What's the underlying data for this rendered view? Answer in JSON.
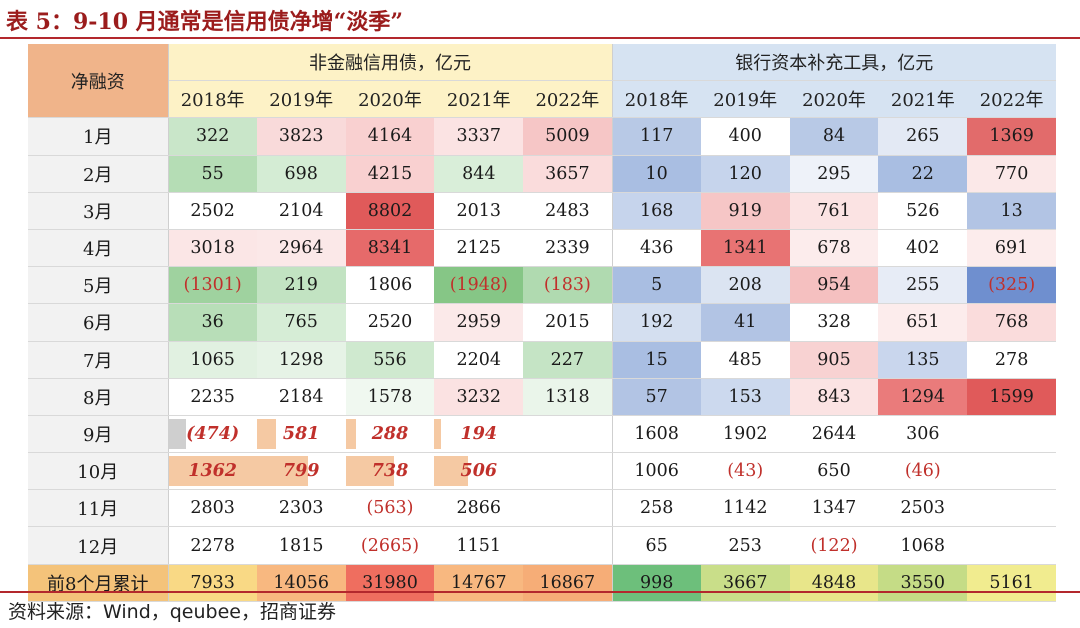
{
  "title": "表 5：9-10 月通常是信用债净增“淡季”",
  "row_header_label": "净融资",
  "groups": [
    "非金融信用债，亿元",
    "银行资本补充工具，亿元"
  ],
  "years": [
    "2018年",
    "2019年",
    "2020年",
    "2021年",
    "2022年",
    "2018年",
    "2019年",
    "2020年",
    "2021年",
    "2022年"
  ],
  "rows": [
    {
      "label": "1月",
      "cells": [
        {
          "v": "322",
          "bg": "#c9e6c9"
        },
        {
          "v": "3823",
          "bg": "#f9dada"
        },
        {
          "v": "4164",
          "bg": "#f9d0d0"
        },
        {
          "v": "3337",
          "bg": "#fbe3e3"
        },
        {
          "v": "5009",
          "bg": "#f6c6c6"
        },
        {
          "v": "117",
          "bg": "#b8c9e6"
        },
        {
          "v": "400",
          "bg": "#ffffff"
        },
        {
          "v": "84",
          "bg": "#b8c9e6"
        },
        {
          "v": "265",
          "bg": "#e3e9f4"
        },
        {
          "v": "1369",
          "bg": "#e26b6b"
        }
      ]
    },
    {
      "label": "2月",
      "cells": [
        {
          "v": "55",
          "bg": "#b5ddb5"
        },
        {
          "v": "698",
          "bg": "#d4ecd4"
        },
        {
          "v": "4215",
          "bg": "#f9d0d0"
        },
        {
          "v": "844",
          "bg": "#d9eed9"
        },
        {
          "v": "3657",
          "bg": "#fadcdc"
        },
        {
          "v": "10",
          "bg": "#a9bee2"
        },
        {
          "v": "120",
          "bg": "#c6d4ec"
        },
        {
          "v": "295",
          "bg": "#eef2f9"
        },
        {
          "v": "22",
          "bg": "#a9bee2"
        },
        {
          "v": "770",
          "bg": "#fbe8e8"
        }
      ]
    },
    {
      "label": "3月",
      "cells": [
        {
          "v": "2502",
          "bg": "#ffffff"
        },
        {
          "v": "2104",
          "bg": "#ffffff"
        },
        {
          "v": "8802",
          "bg": "#e05a5a"
        },
        {
          "v": "2013",
          "bg": "#ffffff"
        },
        {
          "v": "2483",
          "bg": "#ffffff"
        },
        {
          "v": "168",
          "bg": "#c6d4ec"
        },
        {
          "v": "919",
          "bg": "#f6c6c6"
        },
        {
          "v": "761",
          "bg": "#fbe3e3"
        },
        {
          "v": "526",
          "bg": "#ffffff"
        },
        {
          "v": "13",
          "bg": "#b2c4e4"
        }
      ]
    },
    {
      "label": "4月",
      "cells": [
        {
          "v": "3018",
          "bg": "#fbe6e6"
        },
        {
          "v": "2964",
          "bg": "#fbe8e8"
        },
        {
          "v": "8341",
          "bg": "#e66a6a"
        },
        {
          "v": "2125",
          "bg": "#ffffff"
        },
        {
          "v": "2339",
          "bg": "#ffffff"
        },
        {
          "v": "436",
          "bg": "#ffffff"
        },
        {
          "v": "1341",
          "bg": "#e87373"
        },
        {
          "v": "678",
          "bg": "#fcecec"
        },
        {
          "v": "402",
          "bg": "#ffffff"
        },
        {
          "v": "691",
          "bg": "#fcecec"
        }
      ]
    },
    {
      "label": "5月",
      "cells": [
        {
          "v": "(1301)",
          "bg": "#9fd29f",
          "neg": true
        },
        {
          "v": "219",
          "bg": "#c2e3c2"
        },
        {
          "v": "1806",
          "bg": "#ffffff"
        },
        {
          "v": "(1948)",
          "bg": "#86c686",
          "neg": true
        },
        {
          "v": "(183)",
          "bg": "#b0dab0",
          "neg": true
        },
        {
          "v": "5",
          "bg": "#a9bee2"
        },
        {
          "v": "208",
          "bg": "#dbe4f2"
        },
        {
          "v": "954",
          "bg": "#f5c0c0"
        },
        {
          "v": "255",
          "bg": "#e7ecf6"
        },
        {
          "v": "(325)",
          "bg": "#6f8fcf",
          "neg": true
        }
      ]
    },
    {
      "label": "6月",
      "cells": [
        {
          "v": "36",
          "bg": "#b8deb8"
        },
        {
          "v": "765",
          "bg": "#d6edd6"
        },
        {
          "v": "2520",
          "bg": "#ffffff"
        },
        {
          "v": "2959",
          "bg": "#fbe9e9"
        },
        {
          "v": "2015",
          "bg": "#ffffff"
        },
        {
          "v": "192",
          "bg": "#d4dff0"
        },
        {
          "v": "41",
          "bg": "#b2c4e4"
        },
        {
          "v": "328",
          "bg": "#ffffff"
        },
        {
          "v": "651",
          "bg": "#fcecec"
        },
        {
          "v": "768",
          "bg": "#fadcdc"
        }
      ]
    },
    {
      "label": "7月",
      "cells": [
        {
          "v": "1065",
          "bg": "#e1f1e1"
        },
        {
          "v": "1298",
          "bg": "#e6f3e6"
        },
        {
          "v": "556",
          "bg": "#cfe9cf"
        },
        {
          "v": "2204",
          "bg": "#ffffff"
        },
        {
          "v": "227",
          "bg": "#c5e4c5"
        },
        {
          "v": "15",
          "bg": "#a9bee2"
        },
        {
          "v": "485",
          "bg": "#ffffff"
        },
        {
          "v": "905",
          "bg": "#f8d2d2"
        },
        {
          "v": "135",
          "bg": "#c9d6ed"
        },
        {
          "v": "278",
          "bg": "#ffffff"
        }
      ]
    },
    {
      "label": "8月",
      "cells": [
        {
          "v": "2235",
          "bg": "#ffffff"
        },
        {
          "v": "2184",
          "bg": "#ffffff"
        },
        {
          "v": "1578",
          "bg": "#f0f8f0"
        },
        {
          "v": "3232",
          "bg": "#fbe2e2"
        },
        {
          "v": "1318",
          "bg": "#eaf5ea"
        },
        {
          "v": "57",
          "bg": "#b2c4e4"
        },
        {
          "v": "153",
          "bg": "#ccd9ee"
        },
        {
          "v": "843",
          "bg": "#fbe3e3"
        },
        {
          "v": "1294",
          "bg": "#ea7b7b"
        },
        {
          "v": "1599",
          "bg": "#e05a5a"
        }
      ]
    },
    {
      "label": "9月",
      "cells": [
        {
          "v": "(474)",
          "style": "bold-red",
          "hl": "grey",
          "hw": 20
        },
        {
          "v": "581",
          "style": "bold-red",
          "hl": "orange",
          "hw": 22
        },
        {
          "v": "288",
          "style": "bold-red",
          "hl": "orange",
          "hw": 12
        },
        {
          "v": "194",
          "style": "bold-red",
          "hl": "orange",
          "hw": 8
        },
        {
          "v": "",
          "bg": "#ffffff"
        },
        {
          "v": "1608",
          "bg": "#ffffff"
        },
        {
          "v": "1902",
          "bg": "#ffffff"
        },
        {
          "v": "2644",
          "bg": "#ffffff"
        },
        {
          "v": "306",
          "bg": "#ffffff"
        },
        {
          "v": "",
          "bg": "#ffffff"
        }
      ]
    },
    {
      "label": "10月",
      "cells": [
        {
          "v": "1362",
          "style": "bold-red",
          "hl": "orange",
          "hw": 100
        },
        {
          "v": "799",
          "style": "bold-red",
          "hl": "orange",
          "hw": 58
        },
        {
          "v": "738",
          "style": "bold-red",
          "hl": "orange",
          "hw": 55
        },
        {
          "v": "506",
          "style": "bold-red",
          "hl": "orange",
          "hw": 38
        },
        {
          "v": "",
          "bg": "#ffffff"
        },
        {
          "v": "1006",
          "bg": "#ffffff"
        },
        {
          "v": "(43)",
          "bg": "#ffffff",
          "neg": true
        },
        {
          "v": "650",
          "bg": "#ffffff"
        },
        {
          "v": "(46)",
          "bg": "#ffffff",
          "neg": true
        },
        {
          "v": "",
          "bg": "#ffffff"
        }
      ]
    },
    {
      "label": "11月",
      "cells": [
        {
          "v": "2803",
          "bg": "#ffffff"
        },
        {
          "v": "2303",
          "bg": "#ffffff"
        },
        {
          "v": "(563)",
          "bg": "#ffffff",
          "neg": true
        },
        {
          "v": "2866",
          "bg": "#ffffff"
        },
        {
          "v": "",
          "bg": "#ffffff"
        },
        {
          "v": "258",
          "bg": "#ffffff"
        },
        {
          "v": "1142",
          "bg": "#ffffff"
        },
        {
          "v": "1347",
          "bg": "#ffffff"
        },
        {
          "v": "2503",
          "bg": "#ffffff"
        },
        {
          "v": "",
          "bg": "#ffffff"
        }
      ]
    },
    {
      "label": "12月",
      "cells": [
        {
          "v": "2278",
          "bg": "#ffffff"
        },
        {
          "v": "1815",
          "bg": "#ffffff"
        },
        {
          "v": "(2665)",
          "bg": "#ffffff",
          "neg": true
        },
        {
          "v": "1151",
          "bg": "#ffffff"
        },
        {
          "v": "",
          "bg": "#ffffff"
        },
        {
          "v": "65",
          "bg": "#ffffff"
        },
        {
          "v": "253",
          "bg": "#ffffff"
        },
        {
          "v": "(122)",
          "bg": "#ffffff",
          "neg": true
        },
        {
          "v": "1068",
          "bg": "#ffffff"
        },
        {
          "v": "",
          "bg": "#ffffff"
        }
      ]
    },
    {
      "label": "前8个月累计",
      "total": true,
      "cells": [
        {
          "v": "7933",
          "bg": "#f9d985"
        },
        {
          "v": "14056",
          "bg": "#f8b880"
        },
        {
          "v": "31980",
          "bg": "#ef6e5f"
        },
        {
          "v": "14767",
          "bg": "#f8b880"
        },
        {
          "v": "16867",
          "bg": "#f6ad77"
        },
        {
          "v": "998",
          "bg": "#6dbf7b"
        },
        {
          "v": "3667",
          "bg": "#c9de89"
        },
        {
          "v": "4848",
          "bg": "#e8e68a"
        },
        {
          "v": "3550",
          "bg": "#c5dc86"
        },
        {
          "v": "5161",
          "bg": "#f1ec8f"
        }
      ]
    }
  ],
  "source": "资料来源：Wind，qeubee，招商证券"
}
